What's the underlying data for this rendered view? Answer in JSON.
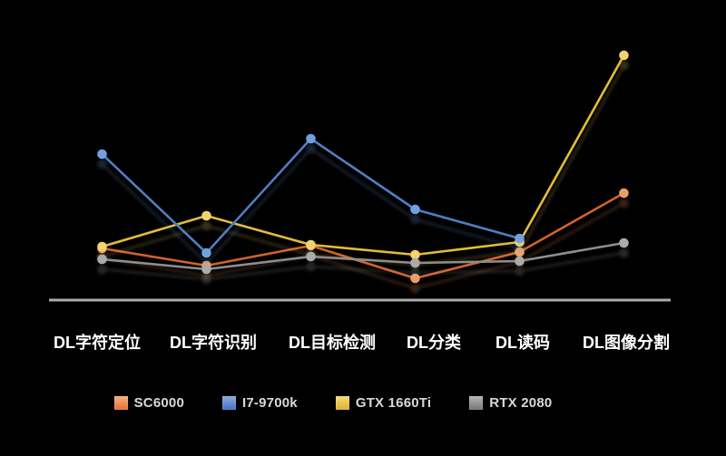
{
  "page": {
    "background": "#000000"
  },
  "chart_data": {
    "type": "line",
    "title": "",
    "xlabel": "",
    "ylabel": "",
    "categories": [
      "DL字符定位",
      "DL字符识别",
      "DL目标检测",
      "DL分类",
      "DL读码",
      "DL图像分割"
    ],
    "series": [
      {
        "name": "SC6000",
        "line_color": "#D2642B",
        "point_color": "#EE9C63",
        "values": [
          57,
          38,
          60,
          24,
          53,
          118
        ]
      },
      {
        "name": "I7-9700k",
        "line_color": "#4E7EC2",
        "point_color": "#70A1DF",
        "values": [
          161,
          52,
          178,
          100,
          68,
          null
        ]
      },
      {
        "name": "GTX 1660Ti",
        "line_color": "#E3BD37",
        "point_color": "#F3D26F",
        "values": [
          59,
          93,
          61,
          50,
          64,
          270
        ]
      },
      {
        "name": "RTX 2080",
        "line_color": "#8E8E8E",
        "point_color": "#ABABAB",
        "values": [
          45,
          34,
          48,
          41,
          43,
          63
        ]
      }
    ],
    "draw_order": [
      0,
      2,
      1,
      3
    ],
    "y_axis": {
      "visible": false,
      "min": 0,
      "max": 290,
      "note": "no y-axis shown; values are relative heights above baseline"
    },
    "x_axis": {
      "line_color": "#ACACAC",
      "label_color": "#FFFFFF",
      "grid": false
    },
    "legend": {
      "position": "bottom",
      "text_color": "#D8D8D8",
      "entries": [
        {
          "label": "SC6000",
          "swatch_top": "#F6B183",
          "swatch_bottom": "#E1722F"
        },
        {
          "label": "I7-9700k",
          "swatch_top": "#8FAADC",
          "swatch_bottom": "#4472C4"
        },
        {
          "label": "GTX 1660Ti",
          "swatch_top": "#F8DB7A",
          "swatch_bottom": "#E0AF2C"
        },
        {
          "label": "RTX 2080",
          "swatch_top": "#B5B5B5",
          "swatch_bottom": "#757575"
        }
      ]
    }
  }
}
